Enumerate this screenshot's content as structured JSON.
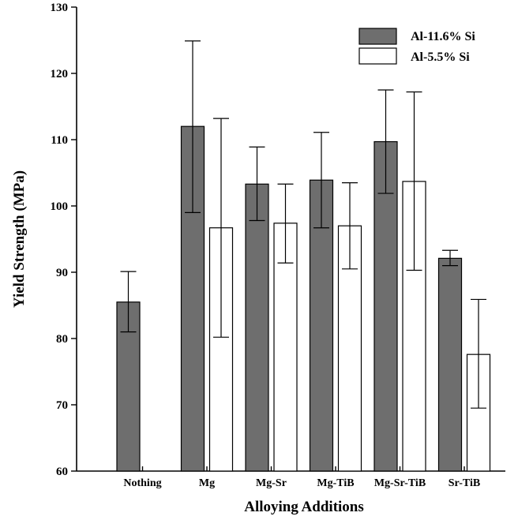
{
  "chart_data": {
    "type": "bar",
    "xlabel": "Alloying Additions",
    "ylabel": "Yield Strength (MPa)",
    "ylim": [
      60,
      130
    ],
    "yticks": [
      60,
      70,
      80,
      90,
      100,
      110,
      120,
      130
    ],
    "categories": [
      "Nothing",
      "Mg",
      "Mg-Sr",
      "Mg-TiB",
      "Mg-Sr-TiB",
      "Sr-TiB"
    ],
    "legend_position": "top-right",
    "grid": false,
    "series": [
      {
        "name": "Al-11.6% Si",
        "color": "#6e6e6e",
        "values": [
          85.5,
          112,
          103.3,
          103.9,
          109.7,
          92.1
        ],
        "error_low": [
          81,
          99,
          97.8,
          96.7,
          101.9,
          91
        ],
        "error_high": [
          90.1,
          124.9,
          108.9,
          111.1,
          117.5,
          93.3
        ]
      },
      {
        "name": "Al-5.5% Si",
        "color": "#ffffff",
        "values": [
          null,
          96.7,
          97.4,
          97,
          103.7,
          77.6
        ],
        "error_low": [
          null,
          80.2,
          91.4,
          90.5,
          90.3,
          69.5
        ],
        "error_high": [
          null,
          113.2,
          103.3,
          103.5,
          117.2,
          85.9
        ]
      }
    ]
  }
}
